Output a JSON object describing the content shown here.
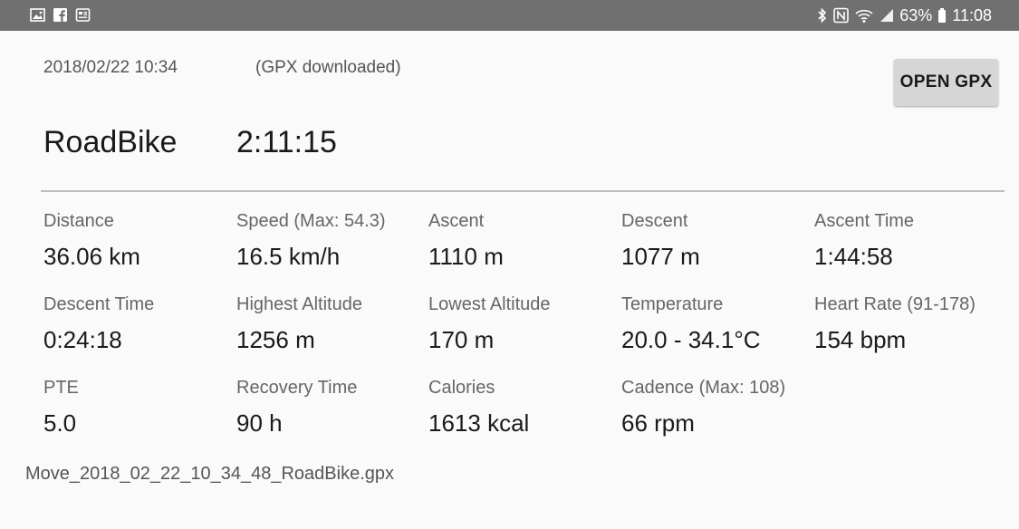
{
  "status_bar": {
    "battery": "63%",
    "time": "11:08",
    "left_icons": [
      "image-icon",
      "facebook-icon",
      "news-icon"
    ],
    "right_icons": [
      "bluetooth-icon",
      "nfc-icon",
      "wifi-icon",
      "signal-icon",
      "battery-icon"
    ]
  },
  "header": {
    "date": "2018/02/22 10:34",
    "note": "(GPX downloaded)",
    "open_gpx_label": "OPEN GPX",
    "activity": "RoadBike",
    "duration": "2:11:15"
  },
  "stats": [
    {
      "label": "Distance",
      "value": "36.06 km"
    },
    {
      "label": "Speed (Max: 54.3)",
      "value": "16.5 km/h"
    },
    {
      "label": "Ascent",
      "value": "1110 m"
    },
    {
      "label": "Descent",
      "value": "1077 m"
    },
    {
      "label": "Ascent Time",
      "value": "1:44:58"
    },
    {
      "label": "Descent Time",
      "value": "0:24:18"
    },
    {
      "label": "Highest Altitude",
      "value": "1256 m"
    },
    {
      "label": "Lowest Altitude",
      "value": "170 m"
    },
    {
      "label": "Temperature",
      "value": "20.0 - 34.1°C"
    },
    {
      "label": "Heart Rate (91-178)",
      "value": "154 bpm"
    },
    {
      "label": "PTE",
      "value": "5.0"
    },
    {
      "label": "Recovery Time",
      "value": "90 h"
    },
    {
      "label": "Calories",
      "value": "1613 kcal"
    },
    {
      "label": "Cadence (Max: 108)",
      "value": "66 rpm"
    }
  ],
  "footer": {
    "filename": "Move_2018_02_22_10_34_48_RoadBike.gpx"
  }
}
